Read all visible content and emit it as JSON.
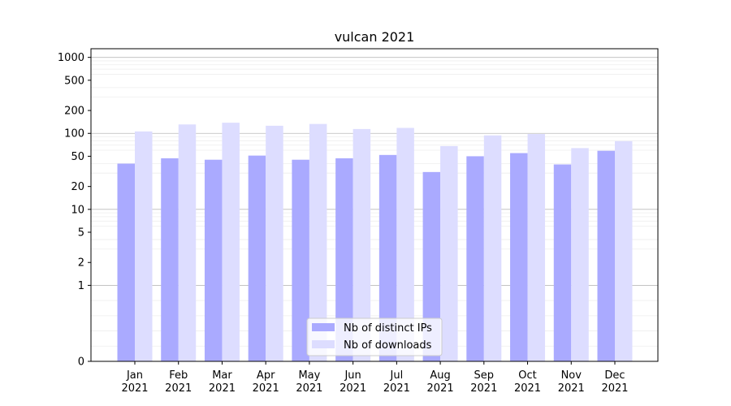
{
  "chart_data": {
    "type": "bar",
    "title": "vulcan 2021",
    "xlabel": "",
    "ylabel": "",
    "yscale": "symlog",
    "ylim": [
      0,
      1300
    ],
    "yticks": [
      0,
      1,
      2,
      5,
      10,
      20,
      50,
      100,
      200,
      500,
      1000
    ],
    "ytick_labels": [
      "0",
      "1",
      "2",
      "5",
      "10",
      "20",
      "50",
      "100",
      "200",
      "500",
      "1000"
    ],
    "categories": [
      [
        "Jan",
        "2021"
      ],
      [
        "Feb",
        "2021"
      ],
      [
        "Mar",
        "2021"
      ],
      [
        "Apr",
        "2021"
      ],
      [
        "May",
        "2021"
      ],
      [
        "Jun",
        "2021"
      ],
      [
        "Jul",
        "2021"
      ],
      [
        "Aug",
        "2021"
      ],
      [
        "Sep",
        "2021"
      ],
      [
        "Oct",
        "2021"
      ],
      [
        "Nov",
        "2021"
      ],
      [
        "Dec",
        "2021"
      ]
    ],
    "series": [
      {
        "name": "Nb of distinct IPs",
        "color": "#aaaaff",
        "values": [
          40,
          47,
          45,
          51,
          45,
          47,
          52,
          31,
          50,
          55,
          39,
          59
        ]
      },
      {
        "name": "Nb of downloads",
        "color": "#ddddff",
        "values": [
          106,
          131,
          138,
          126,
          133,
          114,
          118,
          68,
          94,
          98,
          64,
          79
        ]
      }
    ],
    "grid": true,
    "legend_position": "bottom-center"
  }
}
